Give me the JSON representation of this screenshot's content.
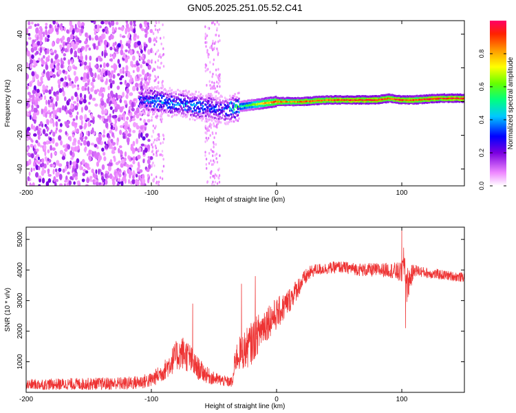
{
  "title": "GN05.2025.251.05.52.C41",
  "chart_data": [
    {
      "type": "heatmap",
      "xlabel": "Height of straight line (km)",
      "ylabel": "Frequency (Hz)",
      "xlim": [
        -200,
        150
      ],
      "ylim": [
        -50,
        48
      ],
      "xticks": [
        "-200",
        "-100",
        "0",
        "100"
      ],
      "xtick_values": [
        -200,
        -100,
        0,
        100
      ],
      "yticks": [
        "-40",
        "-20",
        "0",
        "20",
        "40"
      ],
      "ytick_values": [
        -40,
        -20,
        0,
        20,
        40
      ],
      "colorbar": {
        "label": "Normalized spectral amplitude",
        "range": [
          0,
          1
        ],
        "ticks": [
          "0.0",
          "0.2",
          "0.4",
          "0.6",
          "0.8"
        ],
        "tick_values": [
          0,
          0.2,
          0.4,
          0.6,
          0.8
        ]
      },
      "ridge": {
        "x": [
          -110,
          -100,
          -90,
          -80,
          -70,
          -60,
          -50,
          -40,
          -30,
          -20,
          -10,
          0,
          10,
          20,
          40,
          60,
          80,
          90,
          100,
          110,
          130,
          150
        ],
        "freq": [
          1,
          1,
          0,
          -1,
          -2,
          -3,
          -4,
          -5,
          -3,
          -2,
          -1,
          0,
          0,
          0,
          1,
          1,
          1,
          2,
          1,
          1,
          2,
          2
        ],
        "amplitude": [
          0.25,
          0.35,
          0.35,
          0.35,
          0.35,
          0.35,
          0.3,
          0.3,
          0.5,
          0.6,
          0.8,
          0.9,
          0.85,
          0.9,
          0.9,
          0.95,
          0.95,
          0.9,
          0.95,
          0.9,
          0.95,
          0.95
        ]
      }
    },
    {
      "type": "line",
      "xlabel": "Height of straight line (km)",
      "ylabel": "SNR (10 * v/v)",
      "xlim": [
        -200,
        150
      ],
      "ylim": [
        0,
        5400
      ],
      "xticks": [
        "-200",
        "-100",
        "0",
        "100"
      ],
      "xtick_values": [
        -200,
        -100,
        0,
        100
      ],
      "yticks": [
        "1000",
        "2000",
        "3000",
        "4000",
        "5000"
      ],
      "ytick_values": [
        1000,
        2000,
        3000,
        4000,
        5000
      ],
      "color": "#ee3333",
      "series": [
        {
          "name": "SNR",
          "x": [
            -200,
            -180,
            -160,
            -140,
            -120,
            -110,
            -100,
            -95,
            -90,
            -85,
            -80,
            -75,
            -70,
            -65,
            -60,
            -55,
            -50,
            -45,
            -40,
            -35,
            -33,
            -30,
            -25,
            -20,
            -15,
            -10,
            -5,
            0,
            5,
            10,
            15,
            20,
            25,
            30,
            40,
            50,
            60,
            70,
            80,
            90,
            95,
            100,
            102,
            104,
            110,
            120,
            130,
            140,
            150
          ],
          "values": [
            250,
            260,
            270,
            280,
            290,
            330,
            400,
            550,
            700,
            950,
            1200,
            1300,
            1150,
            850,
            700,
            550,
            450,
            400,
            350,
            330,
            1100,
            1250,
            1400,
            1600,
            1900,
            2200,
            2400,
            2550,
            2750,
            3000,
            3300,
            3600,
            3850,
            4000,
            4050,
            4100,
            4050,
            4000,
            4000,
            4000,
            3950,
            3900,
            4300,
            3500,
            4000,
            3900,
            3850,
            3800,
            3750
          ],
          "noise": [
            180,
            190,
            200,
            210,
            220,
            230,
            250,
            280,
            320,
            420,
            500,
            560,
            520,
            420,
            330,
            270,
            220,
            190,
            180,
            170,
            450,
            550,
            650,
            700,
            650,
            620,
            580,
            520,
            480,
            420,
            360,
            300,
            250,
            200,
            190,
            200,
            200,
            220,
            230,
            240,
            300,
            350,
            600,
            600,
            200,
            170,
            170,
            160,
            160
          ],
          "spikes": [
            {
              "x": -67,
              "value": 2900
            },
            {
              "x": -28,
              "value": 3550
            },
            {
              "x": -17,
              "value": 3800
            },
            {
              "x": 100,
              "value": 5350
            },
            {
              "x": 103,
              "value": 2100
            }
          ]
        }
      ]
    }
  ]
}
